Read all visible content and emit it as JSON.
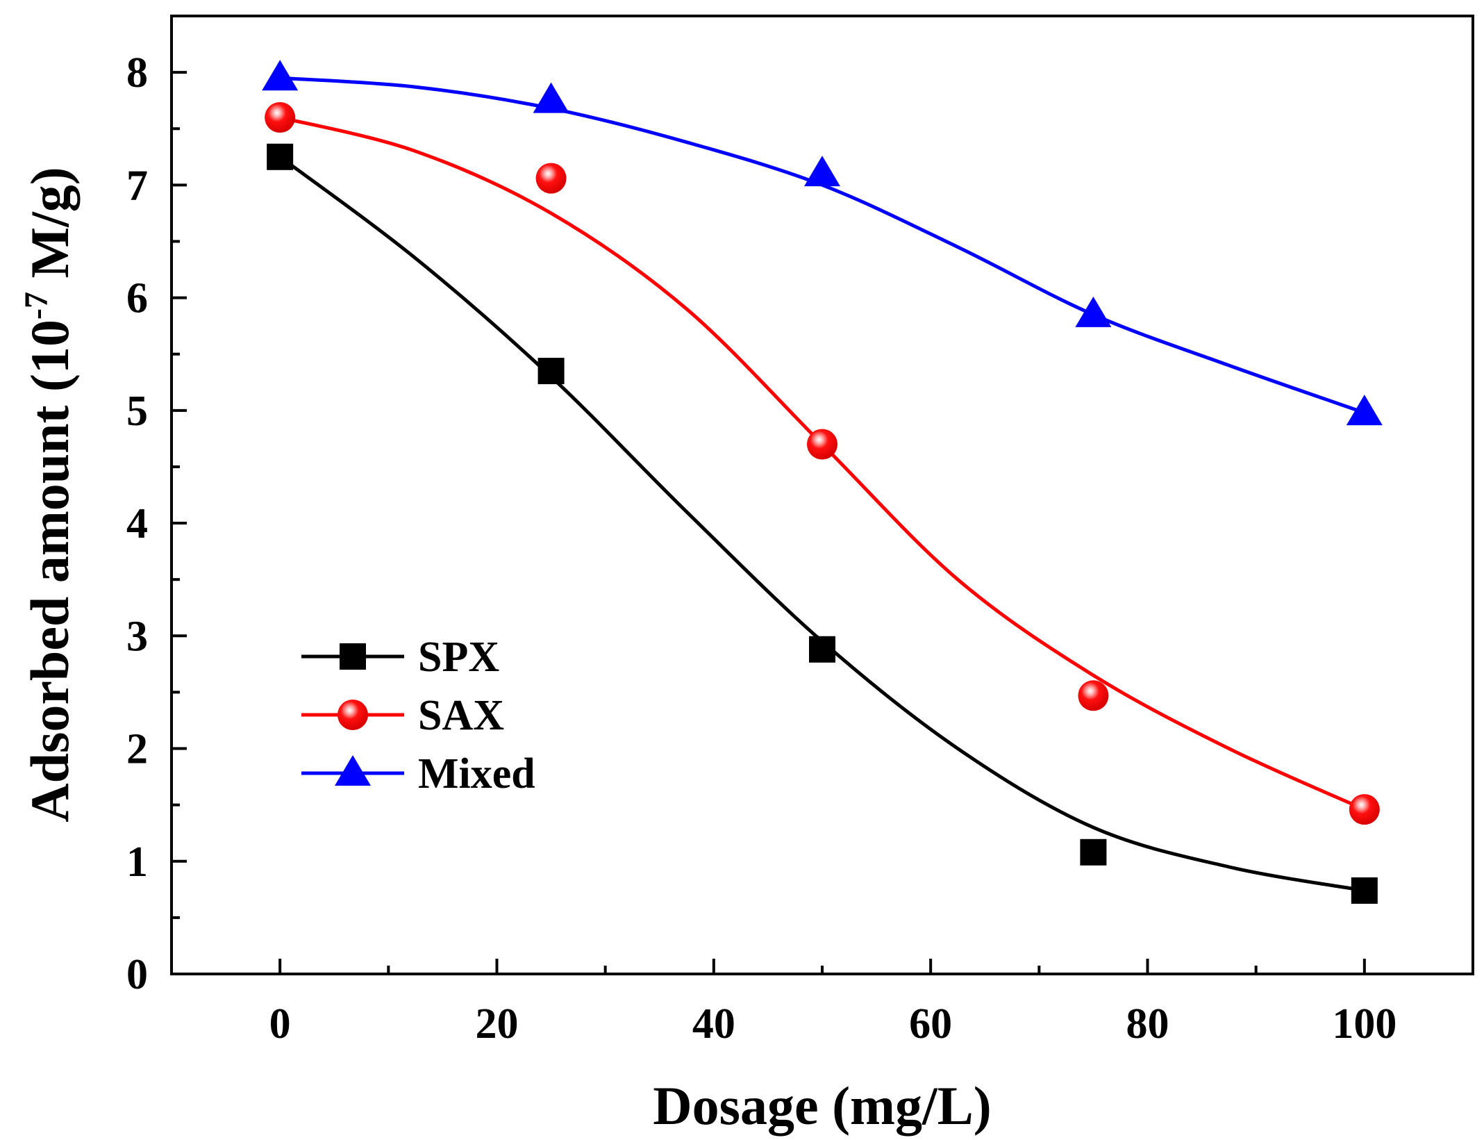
{
  "chart_data": {
    "type": "line",
    "title": "",
    "xlabel": "Dosage (mg/L)",
    "ylabel_main": "Adsorbed amount (10",
    "ylabel_sup": "-7",
    "ylabel_end": " M/g)",
    "xlim": [
      -10,
      110
    ],
    "ylim": [
      0,
      8.5
    ],
    "xticks": [
      0,
      20,
      40,
      60,
      80,
      100
    ],
    "yticks": [
      0,
      1,
      2,
      3,
      4,
      5,
      6,
      7,
      8
    ],
    "grid": false,
    "legend_position": "bottom-left",
    "x": [
      0,
      25,
      50,
      75,
      100
    ],
    "series": [
      {
        "name": "SPX",
        "color": "#000000",
        "marker": "square",
        "values": [
          7.25,
          5.35,
          2.88,
          1.08,
          0.74
        ],
        "fit_x": [
          0,
          12.5,
          25,
          37.5,
          50,
          62.5,
          75,
          87.5,
          100
        ],
        "fit_y": [
          7.25,
          6.35,
          5.3,
          4.1,
          2.95,
          2.0,
          1.3,
          0.95,
          0.74
        ]
      },
      {
        "name": "SAX",
        "color": "#ff0000",
        "marker": "circle",
        "values": [
          7.6,
          7.06,
          4.7,
          2.47,
          1.46
        ],
        "fit_x": [
          0,
          12.5,
          25,
          37.5,
          50,
          62.5,
          75,
          87.5,
          100
        ],
        "fit_y": [
          7.6,
          7.3,
          6.75,
          5.9,
          4.7,
          3.5,
          2.65,
          2.0,
          1.46
        ]
      },
      {
        "name": "Mixed",
        "color": "#0000ff",
        "marker": "triangle",
        "values": [
          7.95,
          7.75,
          7.1,
          5.85,
          4.98
        ],
        "fit_x": [
          0,
          12.5,
          25,
          37.5,
          50,
          62.5,
          75,
          87.5,
          100
        ],
        "fit_y": [
          7.95,
          7.87,
          7.68,
          7.38,
          7.0,
          6.45,
          5.85,
          5.4,
          4.98
        ]
      }
    ]
  }
}
